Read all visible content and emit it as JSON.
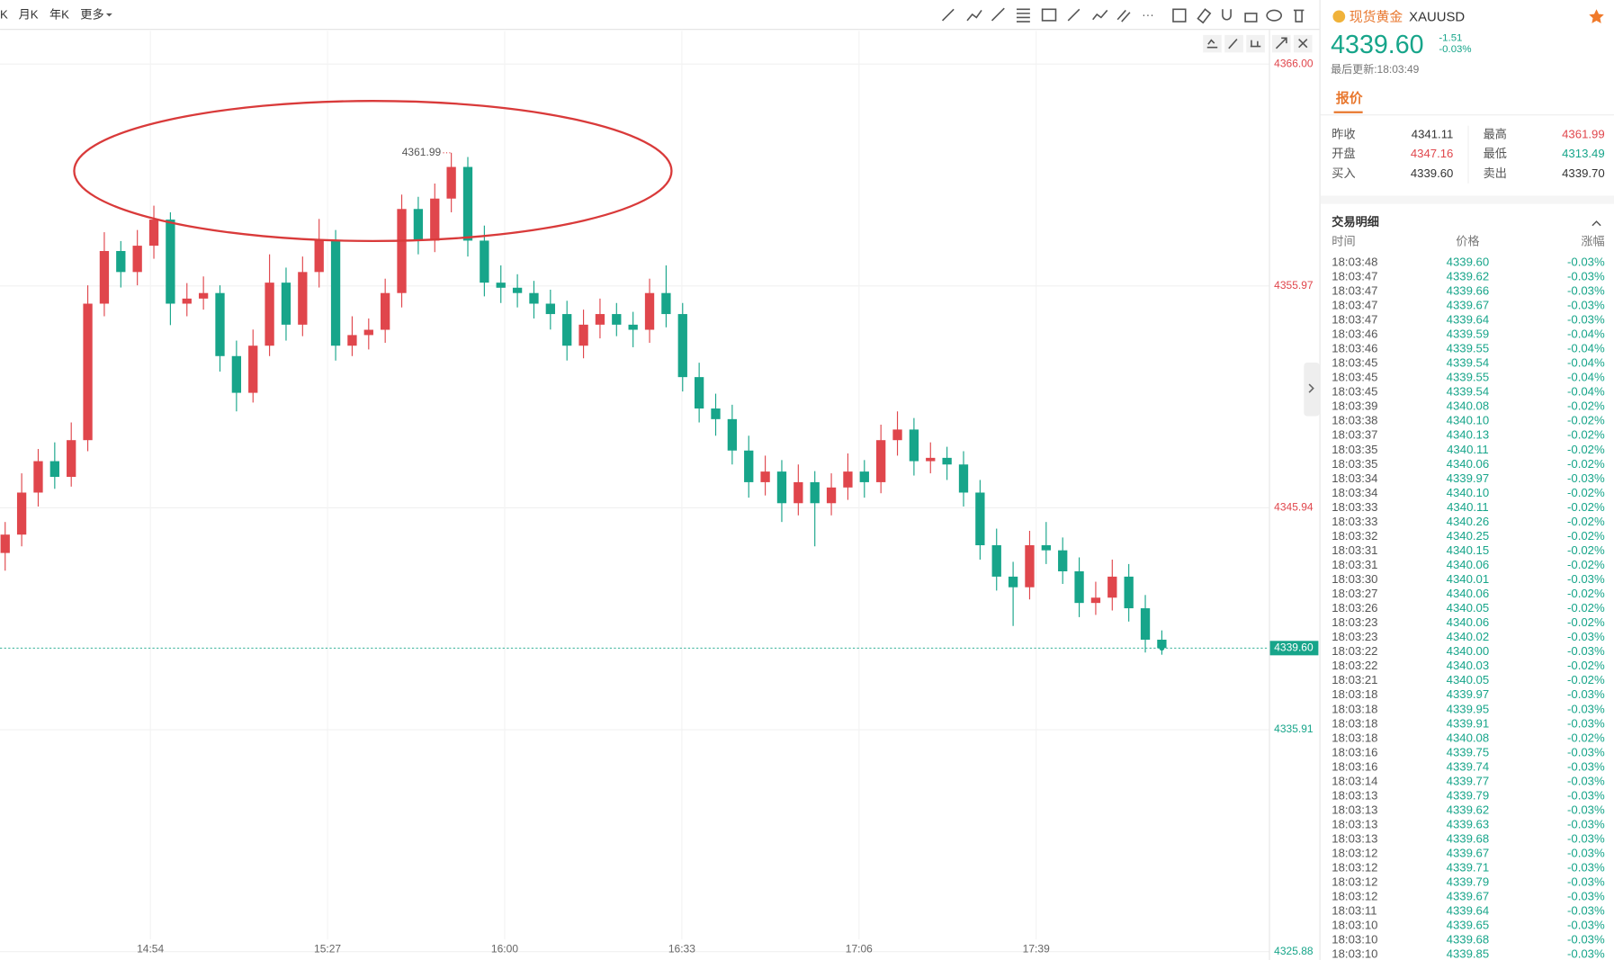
{
  "toolbar": {
    "tabs": [
      "K",
      "月K",
      "年K",
      "更多"
    ]
  },
  "chart": {
    "ylim": [
      4325.5,
      4367.5
    ],
    "yticks": [
      {
        "value": 4366,
        "label": "4366.00"
      },
      {
        "value": 4355.97,
        "label": "4355.97"
      },
      {
        "value": 4345.94,
        "label": "4345.94"
      },
      {
        "value": 4335.91,
        "label": "4335.91"
      },
      {
        "value": 4325.88,
        "label": "4325.88"
      }
    ],
    "x_labels": [
      "14:54",
      "15:27",
      "16:00",
      "16:33",
      "17:06",
      "17:39"
    ],
    "up_color": "#e0464c",
    "down_color": "#17a58a",
    "open": [
      4343.9,
      4344.73,
      4346.63,
      4348.05,
      4347.34,
      4349.0,
      4355.17,
      4357.55,
      4356.6,
      4357.79,
      4358.97,
      4355.17,
      4355.4,
      4355.65,
      4352.8,
      4351.14,
      4353.27,
      4356.12,
      4354.22,
      4356.6,
      4358.02,
      4353.27,
      4353.75,
      4353.99,
      4355.65,
      4359.45,
      4358.02,
      4359.92,
      4361.35,
      4358.02,
      4356.12,
      4355.89,
      4355.65,
      4355.17,
      4354.7,
      4353.27,
      4354.22,
      4354.7,
      4354.22,
      4353.99,
      4355.65,
      4354.7,
      4351.85,
      4350.43,
      4349.95,
      4348.53,
      4347.1,
      4347.58,
      4346.15,
      4347.1,
      4346.15,
      4346.86,
      4347.58,
      4347.1,
      4349.0,
      4349.48,
      4348.05,
      4348.2,
      4347.9,
      4346.63,
      4344.25,
      4342.83,
      4342.35,
      4344.25,
      4344.02,
      4343.07,
      4341.64,
      4341.88,
      4342.83,
      4341.4,
      4339.98
    ],
    "high": [
      4345.3,
      4347.5,
      4348.6,
      4348.9,
      4349.8,
      4356.0,
      4358.4,
      4358.0,
      4358.5,
      4359.6,
      4359.3,
      4356.1,
      4356.4,
      4356.0,
      4353.5,
      4354.0,
      4357.4,
      4356.8,
      4357.3,
      4359.0,
      4358.5,
      4354.6,
      4354.5,
      4356.3,
      4360.1,
      4360.0,
      4360.6,
      4361.99,
      4361.8,
      4358.7,
      4356.9,
      4356.5,
      4356.2,
      4355.8,
      4355.3,
      4354.9,
      4355.4,
      4355.2,
      4354.8,
      4356.3,
      4356.9,
      4355.2,
      4352.5,
      4351.1,
      4350.6,
      4349.2,
      4348.3,
      4348.1,
      4347.9,
      4347.6,
      4347.5,
      4348.4,
      4348.1,
      4349.7,
      4350.3,
      4350.0,
      4348.9,
      4348.7,
      4348.5,
      4347.2,
      4345.0,
      4343.5,
      4344.9,
      4345.3,
      4344.6,
      4343.7,
      4342.6,
      4343.6,
      4343.4,
      4342.0,
      4340.4
    ],
    "low": [
      4343.1,
      4344.2,
      4346.0,
      4346.8,
      4346.9,
      4348.5,
      4354.6,
      4355.9,
      4356.0,
      4357.2,
      4354.2,
      4354.6,
      4354.9,
      4352.1,
      4350.3,
      4350.7,
      4352.8,
      4353.5,
      4353.7,
      4355.9,
      4352.6,
      4352.8,
      4353.1,
      4353.4,
      4355.0,
      4357.4,
      4357.5,
      4359.3,
      4357.3,
      4355.5,
      4355.2,
      4355.0,
      4354.5,
      4354.0,
      4352.6,
      4352.7,
      4353.6,
      4353.7,
      4353.2,
      4353.4,
      4354.1,
      4351.2,
      4349.8,
      4349.2,
      4347.9,
      4346.4,
      4346.5,
      4345.3,
      4345.6,
      4344.2,
      4345.6,
      4346.3,
      4346.4,
      4346.6,
      4348.3,
      4347.4,
      4347.5,
      4347.2,
      4346.0,
      4343.6,
      4342.2,
      4340.6,
      4341.8,
      4343.4,
      4342.5,
      4341.0,
      4341.1,
      4341.3,
      4340.8,
      4339.4,
      4339.3
    ],
    "close": [
      4344.73,
      4346.63,
      4348.05,
      4347.34,
      4349.0,
      4355.17,
      4357.55,
      4356.6,
      4357.79,
      4358.97,
      4355.17,
      4355.4,
      4355.65,
      4352.8,
      4351.14,
      4353.27,
      4356.12,
      4354.22,
      4356.6,
      4358.02,
      4353.27,
      4353.75,
      4353.99,
      4355.65,
      4359.45,
      4358.02,
      4359.92,
      4361.35,
      4358.02,
      4356.12,
      4355.89,
      4355.65,
      4355.17,
      4354.7,
      4353.27,
      4354.22,
      4354.7,
      4354.22,
      4353.99,
      4355.65,
      4354.7,
      4351.85,
      4350.43,
      4349.95,
      4348.53,
      4347.1,
      4347.58,
      4346.15,
      4347.1,
      4346.15,
      4346.86,
      4347.58,
      4347.1,
      4349.0,
      4349.48,
      4348.05,
      4348.2,
      4347.9,
      4346.63,
      4344.25,
      4342.83,
      4342.35,
      4344.25,
      4344.02,
      4343.07,
      4341.64,
      4341.88,
      4342.83,
      4341.4,
      4339.98,
      4339.6
    ]
  },
  "quote": {
    "name": "现货黄金",
    "symbol": "XAUUSD",
    "price": "4339.60",
    "change": "-1.51",
    "change_pct": "-0.03%",
    "updated": "最后更新:18:03:49",
    "tab": "报价",
    "stats": [
      {
        "label": "昨收",
        "value": "4341.11"
      },
      {
        "label": "最高",
        "value": "4361.99"
      },
      {
        "label": "开盘",
        "value": "4347.16"
      },
      {
        "label": "最低",
        "value": "4313.49"
      },
      {
        "label": "买入",
        "value": "4339.60"
      },
      {
        "label": "卖出",
        "value": "4339.70"
      }
    ]
  },
  "trades": {
    "title": "交易明细",
    "headers": [
      "时间",
      "价格",
      "涨幅"
    ],
    "rows": [
      [
        "18:03:48",
        "4339.60",
        "-0.03%"
      ],
      [
        "18:03:47",
        "4339.62",
        "-0.03%"
      ],
      [
        "18:03:47",
        "4339.66",
        "-0.03%"
      ],
      [
        "18:03:47",
        "4339.67",
        "-0.03%"
      ],
      [
        "18:03:47",
        "4339.64",
        "-0.03%"
      ],
      [
        "18:03:46",
        "4339.59",
        "-0.04%"
      ],
      [
        "18:03:46",
        "4339.55",
        "-0.04%"
      ],
      [
        "18:03:45",
        "4339.54",
        "-0.04%"
      ],
      [
        "18:03:45",
        "4339.55",
        "-0.04%"
      ],
      [
        "18:03:45",
        "4339.54",
        "-0.04%"
      ],
      [
        "18:03:39",
        "4340.08",
        "-0.02%"
      ],
      [
        "18:03:38",
        "4340.10",
        "-0.02%"
      ],
      [
        "18:03:37",
        "4340.13",
        "-0.02%"
      ],
      [
        "18:03:35",
        "4340.11",
        "-0.02%"
      ],
      [
        "18:03:35",
        "4340.06",
        "-0.02%"
      ],
      [
        "18:03:34",
        "4339.97",
        "-0.03%"
      ],
      [
        "18:03:34",
        "4340.10",
        "-0.02%"
      ],
      [
        "18:03:33",
        "4340.11",
        "-0.02%"
      ],
      [
        "18:03:33",
        "4340.26",
        "-0.02%"
      ],
      [
        "18:03:32",
        "4340.25",
        "-0.02%"
      ],
      [
        "18:03:31",
        "4340.15",
        "-0.02%"
      ],
      [
        "18:03:31",
        "4340.06",
        "-0.02%"
      ],
      [
        "18:03:30",
        "4340.01",
        "-0.03%"
      ],
      [
        "18:03:27",
        "4340.06",
        "-0.02%"
      ],
      [
        "18:03:26",
        "4340.05",
        "-0.02%"
      ],
      [
        "18:03:23",
        "4340.06",
        "-0.02%"
      ],
      [
        "18:03:23",
        "4340.02",
        "-0.03%"
      ],
      [
        "18:03:22",
        "4340.00",
        "-0.03%"
      ],
      [
        "18:03:22",
        "4340.03",
        "-0.02%"
      ],
      [
        "18:03:21",
        "4340.05",
        "-0.02%"
      ],
      [
        "18:03:18",
        "4339.97",
        "-0.03%"
      ],
      [
        "18:03:18",
        "4339.95",
        "-0.03%"
      ],
      [
        "18:03:18",
        "4339.91",
        "-0.03%"
      ],
      [
        "18:03:18",
        "4340.08",
        "-0.02%"
      ],
      [
        "18:03:16",
        "4339.75",
        "-0.03%"
      ],
      [
        "18:03:16",
        "4339.74",
        "-0.03%"
      ],
      [
        "18:03:14",
        "4339.77",
        "-0.03%"
      ],
      [
        "18:03:13",
        "4339.79",
        "-0.03%"
      ],
      [
        "18:03:13",
        "4339.62",
        "-0.03%"
      ],
      [
        "18:03:13",
        "4339.63",
        "-0.03%"
      ],
      [
        "18:03:13",
        "4339.68",
        "-0.03%"
      ],
      [
        "18:03:12",
        "4339.67",
        "-0.03%"
      ],
      [
        "18:03:12",
        "4339.71",
        "-0.03%"
      ],
      [
        "18:03:12",
        "4339.79",
        "-0.03%"
      ],
      [
        "18:03:12",
        "4339.67",
        "-0.03%"
      ],
      [
        "18:03:11",
        "4339.64",
        "-0.03%"
      ],
      [
        "18:03:10",
        "4339.65",
        "-0.03%"
      ],
      [
        "18:03:10",
        "4339.68",
        "-0.03%"
      ],
      [
        "18:03:10",
        "4339.85",
        "-0.03%"
      ]
    ]
  }
}
